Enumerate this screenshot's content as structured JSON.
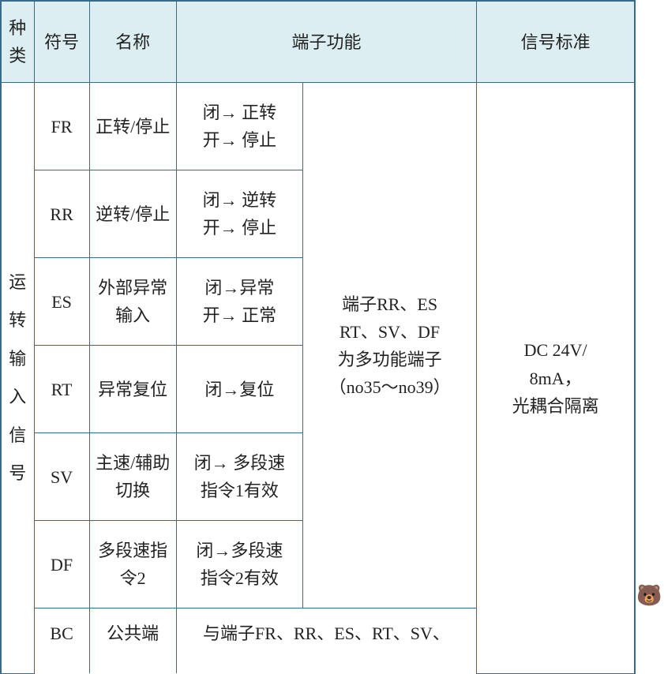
{
  "colors": {
    "border": "#3a6a8a",
    "header_bg": "#dceef2",
    "text": "#222222",
    "page_bg": "#ffffff"
  },
  "header": {
    "category": "种类",
    "symbol": "符号",
    "name": "名称",
    "func": "端子功能",
    "signal": "信号标准"
  },
  "category_label": "运转输入信号",
  "shared_func_note": "端子RR、ES\nRT、SV、DF\n为多功能端子\n（no35～no39）",
  "signal_note": "DC 24V/\n8mA，\n光耦合隔离",
  "rows": {
    "r0": {
      "sym": "FR",
      "name": "正转/停止",
      "func": "闭→ 正转\n开→ 停止"
    },
    "r1": {
      "sym": "RR",
      "name": "逆转/停止",
      "func": "闭→ 逆转\n开→ 停止"
    },
    "r2": {
      "sym": "ES",
      "name": "外部异常输入",
      "func": "闭→异常\n开→ 正常"
    },
    "r3": {
      "sym": "RT",
      "name": "异常复位",
      "func": "闭→复位"
    },
    "r4": {
      "sym": "SV",
      "name": "主速/辅助切换",
      "func": "闭→ 多段速\n指令1有效"
    },
    "r5": {
      "sym": "DF",
      "name": "多段速指令2",
      "func": "闭→多段速\n指令2有效"
    },
    "r6": {
      "sym": "BC",
      "name": "公共端",
      "func": "与端子FR、RR、ES、RT、SV、"
    }
  },
  "mascot_glyph": "🐻"
}
